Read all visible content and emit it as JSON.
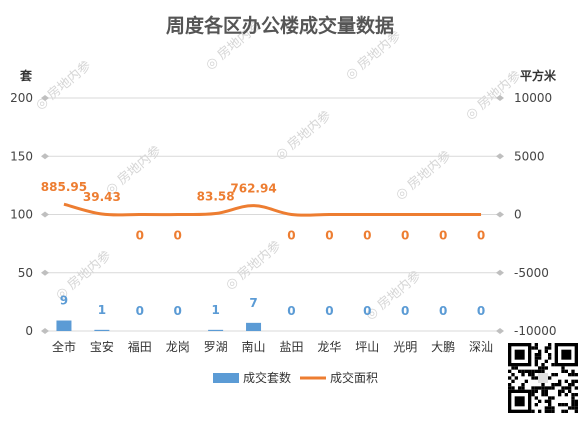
{
  "chart_data": {
    "type": "bar",
    "title": "周度各区办公楼成交量数据",
    "categories": [
      "全市",
      "宝安",
      "福田",
      "龙岗",
      "罗湖",
      "南山",
      "盐田",
      "龙华",
      "坪山",
      "光明",
      "大鹏",
      "深汕"
    ],
    "ylabel": "套",
    "y2label": "平方米",
    "ylim": [
      0,
      200
    ],
    "yticks": [
      0,
      50,
      100,
      150,
      200
    ],
    "y2lim": [
      -10000,
      10000
    ],
    "y2ticks": [
      -10000,
      -5000,
      0,
      5000,
      10000
    ],
    "grid": true,
    "legend_position": "bottom",
    "series": [
      {
        "name": "成交套数",
        "type": "bar",
        "axis": "left",
        "color": "#5b9bd5",
        "values": [
          9,
          1,
          0,
          0,
          1,
          7,
          0,
          0,
          0,
          0,
          0,
          0
        ]
      },
      {
        "name": "成交面积",
        "type": "line",
        "axis": "right",
        "color": "#ed7d31",
        "smooth": true,
        "values": [
          885.95,
          39.43,
          0,
          0,
          83.58,
          762.94,
          0,
          0,
          0,
          0,
          0,
          0
        ]
      }
    ]
  },
  "watermark_text": "房地内参",
  "qr_code": {
    "icon": "qr-code-icon"
  }
}
